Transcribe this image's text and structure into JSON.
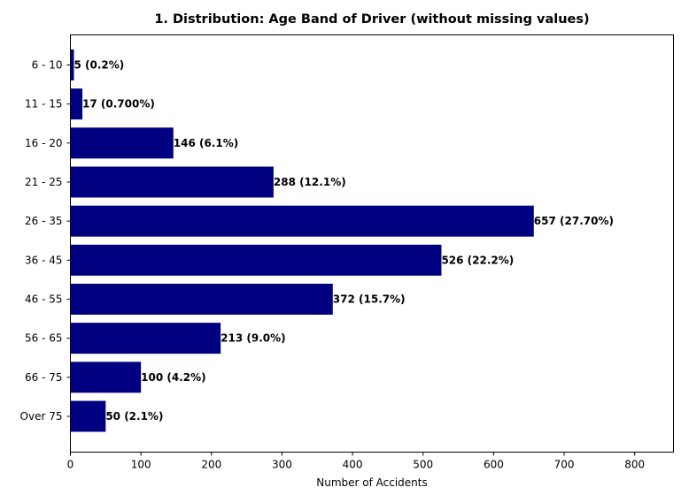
{
  "chart_data": {
    "type": "bar",
    "orientation": "horizontal",
    "title": "1. Distribution: Age Band of Driver (without missing values)",
    "xlabel": "Number of Accidents",
    "ylabel": "",
    "categories": [
      "6 - 10",
      "11 - 15",
      "16 - 20",
      "21 - 25",
      "26 - 35",
      "36 - 45",
      "46 - 55",
      "56 - 65",
      "66 - 75",
      "Over 75"
    ],
    "values": [
      5,
      17,
      146,
      288,
      657,
      526,
      372,
      213,
      100,
      50
    ],
    "data_labels": [
      "5 (0.2%)",
      "17 (0.700%)",
      "146 (6.1%)",
      "288 (12.1%)",
      "657 (27.70%)",
      "526 (22.2%)",
      "372 (15.7%)",
      "213 (9.0%)",
      "100 (4.2%)",
      "50 (2.1%)"
    ],
    "xlim": [
      0,
      855
    ],
    "xticks": [
      0,
      100,
      200,
      300,
      400,
      500,
      600,
      700,
      800
    ],
    "grid": false,
    "bar_color": "#000080"
  }
}
